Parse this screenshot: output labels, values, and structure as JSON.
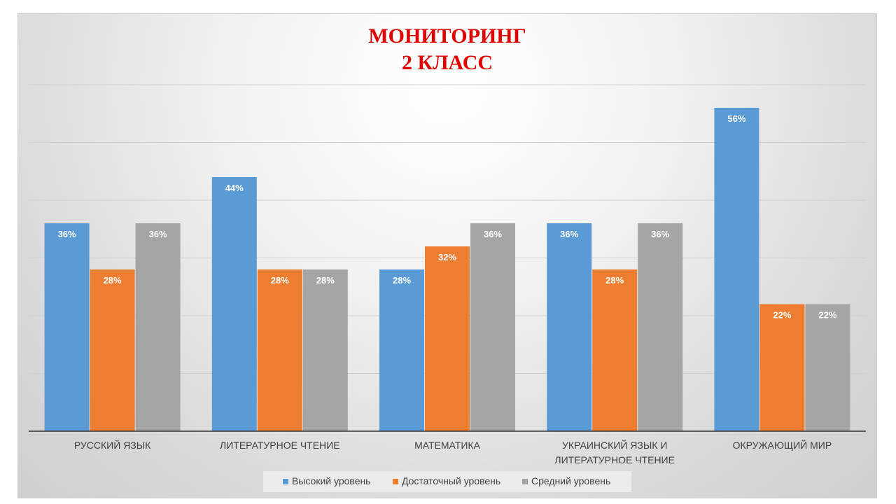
{
  "chart_data": {
    "type": "bar",
    "title": [
      "МОНИТОРИНГ",
      "2 КЛАСС"
    ],
    "categories": [
      [
        "РУССКИЙ ЯЗЫК"
      ],
      [
        "ЛИТЕРАТУРНОЕ ЧТЕНИЕ"
      ],
      [
        "МАТЕМАТИКА"
      ],
      [
        "УКРАИНСКИЙ ЯЗЫК И",
        "ЛИТЕРАТУРНОЕ ЧТЕНИЕ"
      ],
      [
        "ОКРУЖАЮЩИЙ МИР"
      ]
    ],
    "series": [
      {
        "name": "Высокий уровень",
        "color": "#5b9bd5",
        "values": [
          36,
          44,
          28,
          36,
          56
        ]
      },
      {
        "name": "Достаточный уровень",
        "color": "#ed7d31",
        "values": [
          28,
          28,
          32,
          28,
          22
        ]
      },
      {
        "name": "Средний уровень",
        "color": "#a5a5a5",
        "values": [
          36,
          28,
          36,
          36,
          22
        ]
      }
    ],
    "value_suffix": "%",
    "ylim": [
      0,
      60
    ],
    "grid": true,
    "legend_position": "bottom"
  }
}
